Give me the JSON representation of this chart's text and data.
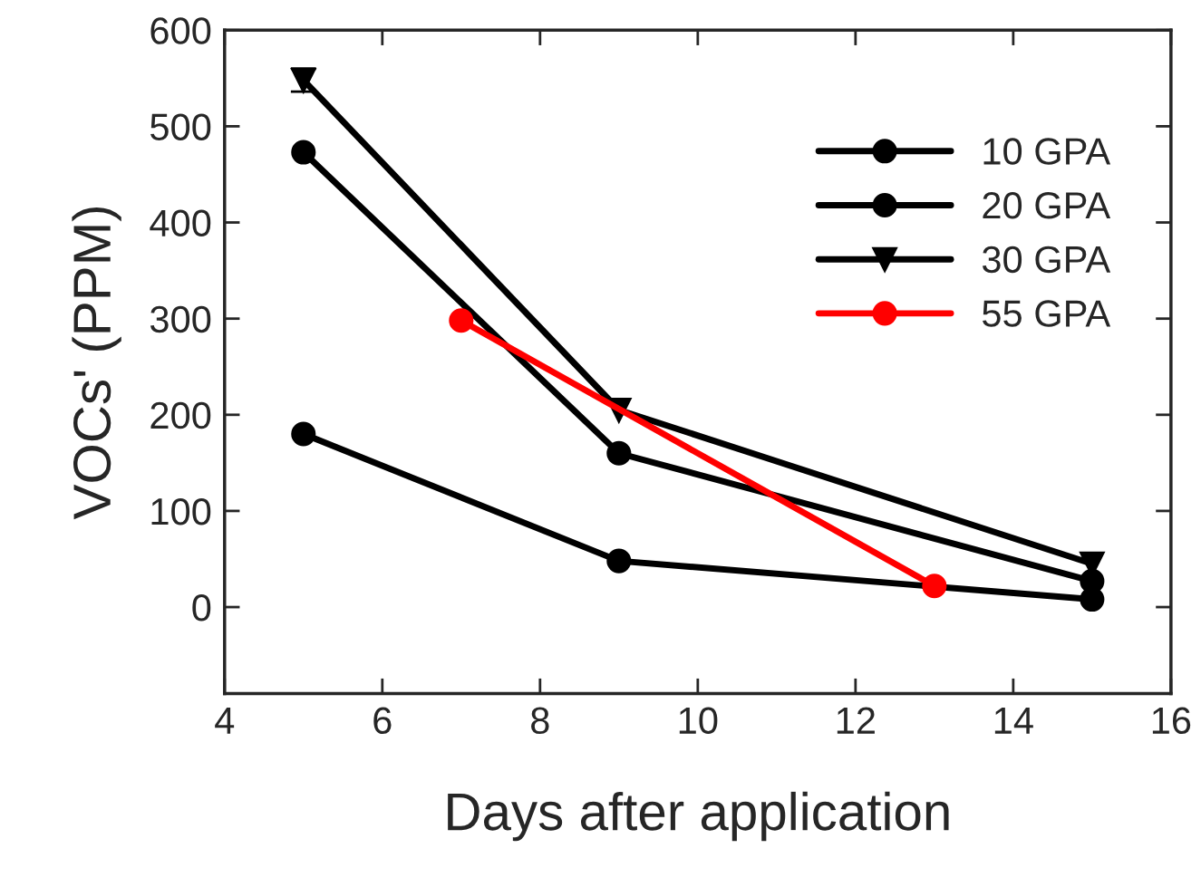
{
  "chart_data": {
    "type": "line",
    "xlabel": "Days after application",
    "ylabel": "VOCs' (PPM)",
    "xlim": [
      4,
      16
    ],
    "xticks": [
      4,
      6,
      8,
      10,
      12,
      14,
      16
    ],
    "ylim": [
      -90,
      600
    ],
    "yticks": [
      0,
      100,
      200,
      300,
      400,
      500,
      600
    ],
    "grid": false,
    "legend": "top right",
    "line_style": "solid",
    "series": [
      {
        "name": "10 GPA",
        "color": "#000000",
        "marker": "circle",
        "x": [
          5,
          9,
          15
        ],
        "values": [
          180,
          48,
          8
        ]
      },
      {
        "name": "20 GPA",
        "color": "#000000",
        "marker": "circle",
        "x": [
          5,
          9,
          15
        ],
        "values": [
          473,
          160,
          27
        ]
      },
      {
        "name": "30 GPA",
        "color": "#000000",
        "marker": "triangle",
        "x": [
          5,
          9,
          15
        ],
        "values": [
          548,
          205,
          45
        ],
        "errors": [
          12,
          null,
          null
        ]
      },
      {
        "name": "55 GPA",
        "color": "#ff0000",
        "marker": "circle",
        "x": [
          7,
          13
        ],
        "values": [
          298,
          22
        ]
      }
    ]
  }
}
